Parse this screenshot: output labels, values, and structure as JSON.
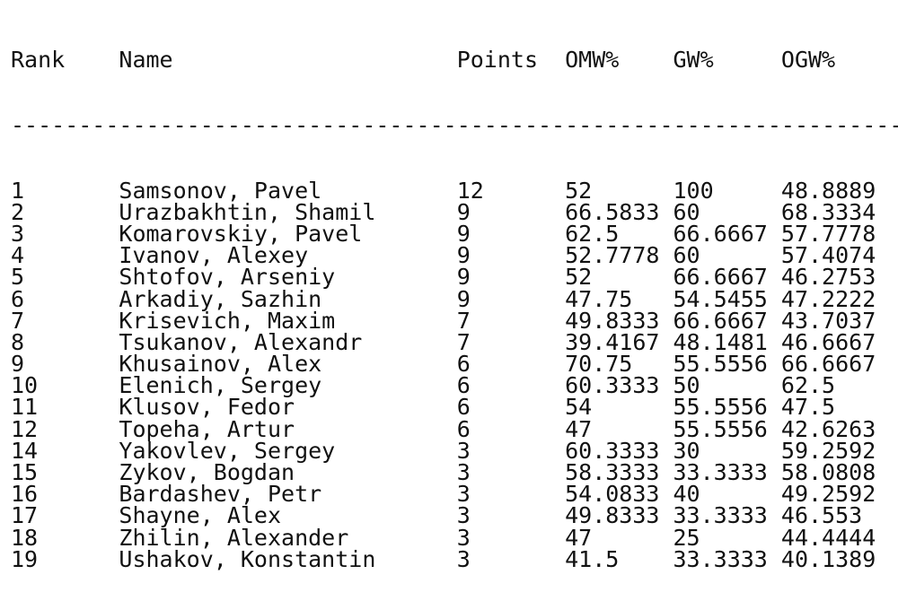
{
  "header": {
    "rank": "Rank",
    "name": "Name",
    "points": "Points",
    "omw": "OMW%",
    "gw": "GW%",
    "ogw": "OGW%"
  },
  "separator": "----------------------------------------------------------------------",
  "rows": [
    {
      "rank": "1",
      "name": "Samsonov, Pavel",
      "points": "12",
      "omw": "52",
      "gw": "100",
      "ogw": "48.8889"
    },
    {
      "rank": "2",
      "name": "Urazbakhtin, Shamil",
      "points": "9",
      "omw": "66.5833",
      "gw": "60",
      "ogw": "68.3334"
    },
    {
      "rank": "3",
      "name": "Komarovskiy, Pavel",
      "points": "9",
      "omw": "62.5",
      "gw": "66.6667",
      "ogw": "57.7778"
    },
    {
      "rank": "4",
      "name": "Ivanov, Alexey",
      "points": "9",
      "omw": "52.7778",
      "gw": "60",
      "ogw": "57.4074"
    },
    {
      "rank": "5",
      "name": "Shtofov, Arseniy",
      "points": "9",
      "omw": "52",
      "gw": "66.6667",
      "ogw": "46.2753"
    },
    {
      "rank": "6",
      "name": "Arkadiy, Sazhin",
      "points": "9",
      "omw": "47.75",
      "gw": "54.5455",
      "ogw": "47.2222"
    },
    {
      "rank": "7",
      "name": "Krisevich, Maxim",
      "points": "7",
      "omw": "49.8333",
      "gw": "66.6667",
      "ogw": "43.7037"
    },
    {
      "rank": "8",
      "name": "Tsukanov, Alexandr",
      "points": "7",
      "omw": "39.4167",
      "gw": "48.1481",
      "ogw": "46.6667"
    },
    {
      "rank": "9",
      "name": "Khusainov, Alex",
      "points": "6",
      "omw": "70.75",
      "gw": "55.5556",
      "ogw": "66.6667"
    },
    {
      "rank": "10",
      "name": "Elenich, Sergey",
      "points": "6",
      "omw": "60.3333",
      "gw": "50",
      "ogw": "62.5"
    },
    {
      "rank": "11",
      "name": "Klusov, Fedor",
      "points": "6",
      "omw": "54",
      "gw": "55.5556",
      "ogw": "47.5"
    },
    {
      "rank": "12",
      "name": "Topeha, Artur",
      "points": "6",
      "omw": "47",
      "gw": "55.5556",
      "ogw": "42.6263"
    },
    {
      "rank": "14",
      "name": "Yakovlev, Sergey",
      "points": "3",
      "omw": "60.3333",
      "gw": "30",
      "ogw": "59.2592"
    },
    {
      "rank": "15",
      "name": "Zykov, Bogdan",
      "points": "3",
      "omw": "58.3333",
      "gw": "33.3333",
      "ogw": "58.0808"
    },
    {
      "rank": "16",
      "name": "Bardashev, Petr",
      "points": "3",
      "omw": "54.0833",
      "gw": "40",
      "ogw": "49.2592"
    },
    {
      "rank": "17",
      "name": "Shayne, Alex",
      "points": "3",
      "omw": "49.8333",
      "gw": "33.3333",
      "ogw": "46.553"
    },
    {
      "rank": "18",
      "name": "Zhilin, Alexander",
      "points": "3",
      "omw": "47",
      "gw": "25",
      "ogw": "44.4444"
    },
    {
      "rank": "19",
      "name": "Ushakov, Konstantin",
      "points": "3",
      "omw": "41.5",
      "gw": "33.3333",
      "ogw": "40.1389"
    }
  ]
}
